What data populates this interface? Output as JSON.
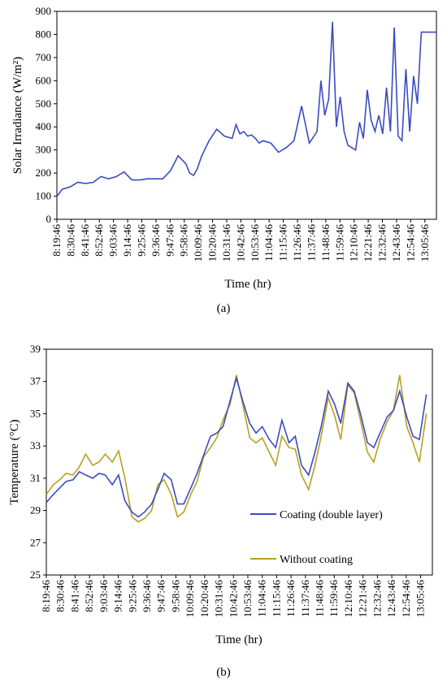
{
  "time_labels": [
    "8:19:46",
    "8:30:46",
    "8:41:46",
    "8:52:46",
    "9:03:46",
    "9:14:46",
    "9:25:46",
    "9:36:46",
    "9:47:46",
    "9:58:46",
    "10:09:46",
    "10:20:46",
    "10:31:46",
    "10:42:46",
    "10:53:46",
    "11:04:46",
    "11:15:46",
    "11:26:46",
    "11:37:46",
    "11:48:46",
    "11:59:46",
    "12:10:46",
    "12:21:46",
    "12:32:46",
    "12:43:46",
    "12:54:46",
    "13:05:46"
  ],
  "chart_data": [
    {
      "type": "line",
      "caption": "(a)",
      "xlabel": "Time (hr)",
      "ylabel": "Solar Irradiance (W/m²)",
      "ylim": [
        0,
        900
      ],
      "yticks": [
        0,
        100,
        200,
        300,
        400,
        500,
        600,
        700,
        800,
        900
      ],
      "x_hours": [
        8.33,
        8.4,
        8.5,
        8.6,
        8.7,
        8.8,
        8.9,
        9.0,
        9.1,
        9.2,
        9.3,
        9.4,
        9.5,
        9.6,
        9.7,
        9.8,
        9.9,
        10.0,
        10.05,
        10.1,
        10.15,
        10.2,
        10.3,
        10.4,
        10.5,
        10.6,
        10.65,
        10.7,
        10.75,
        10.8,
        10.85,
        10.9,
        10.95,
        11.0,
        11.1,
        11.2,
        11.3,
        11.4,
        11.5,
        11.6,
        11.7,
        11.75,
        11.8,
        11.85,
        11.9,
        11.95,
        12.0,
        12.05,
        12.1,
        12.15,
        12.2,
        12.25,
        12.3,
        12.35,
        12.4,
        12.45,
        12.5,
        12.55,
        12.6,
        12.65,
        12.7,
        12.75,
        12.8,
        12.85,
        12.9,
        12.95,
        13.0,
        13.05,
        13.1,
        13.15,
        13.2,
        13.25
      ],
      "series": [
        {
          "color": "#3b4cc0",
          "values": [
            100,
            130,
            140,
            160,
            155,
            160,
            185,
            175,
            185,
            205,
            170,
            170,
            175,
            175,
            175,
            210,
            275,
            240,
            200,
            190,
            220,
            270,
            340,
            390,
            360,
            350,
            410,
            370,
            380,
            360,
            365,
            350,
            330,
            340,
            330,
            290,
            310,
            340,
            490,
            330,
            380,
            600,
            450,
            520,
            855,
            400,
            530,
            380,
            320,
            310,
            300,
            420,
            350,
            560,
            430,
            380,
            450,
            370,
            570,
            380,
            830,
            360,
            340,
            650,
            380,
            620,
            500,
            810,
            810,
            810,
            810,
            810
          ]
        }
      ]
    },
    {
      "type": "line",
      "caption": "(b)",
      "xlabel": "Time (hr)",
      "ylabel": "Temperature (°C)",
      "ylim": [
        25,
        39
      ],
      "yticks": [
        25,
        27,
        29,
        31,
        33,
        35,
        37,
        39
      ],
      "x_hours": [
        8.33,
        8.42,
        8.5,
        8.58,
        8.67,
        8.75,
        8.83,
        8.92,
        9.0,
        9.08,
        9.17,
        9.25,
        9.33,
        9.42,
        9.5,
        9.58,
        9.67,
        9.75,
        9.83,
        9.92,
        10.0,
        10.08,
        10.17,
        10.25,
        10.33,
        10.42,
        10.5,
        10.58,
        10.67,
        10.75,
        10.83,
        10.92,
        11.0,
        11.08,
        11.17,
        11.25,
        11.33,
        11.42,
        11.5,
        11.58,
        11.67,
        11.75,
        11.83,
        11.92,
        12.0,
        12.08,
        12.17,
        12.25,
        12.33,
        12.42,
        12.5,
        12.58,
        12.67,
        12.75,
        12.83,
        12.92,
        13.0,
        13.08,
        13.17
      ],
      "series": [
        {
          "name": "Coating (double layer)",
          "color": "#3b4cc0",
          "values": [
            29.5,
            30.0,
            30.4,
            30.8,
            30.9,
            31.4,
            31.2,
            31.0,
            31.3,
            31.2,
            30.6,
            31.2,
            29.6,
            28.9,
            28.6,
            28.9,
            29.4,
            30.3,
            31.3,
            30.9,
            29.4,
            29.4,
            30.4,
            31.3,
            32.4,
            33.6,
            33.8,
            34.2,
            35.8,
            37.2,
            35.8,
            34.4,
            33.8,
            34.2,
            33.4,
            32.9,
            34.6,
            33.2,
            33.6,
            31.8,
            31.2,
            32.6,
            34.2,
            36.4,
            35.6,
            34.4,
            36.9,
            36.4,
            35.0,
            33.2,
            32.9,
            33.8,
            34.8,
            35.2,
            36.4,
            34.8,
            33.6,
            33.4,
            36.2
          ]
        },
        {
          "name": "Without coating",
          "color": "#b8a020",
          "values": [
            30.0,
            30.6,
            30.9,
            31.3,
            31.2,
            31.7,
            32.5,
            31.8,
            32.0,
            32.5,
            32.0,
            32.7,
            31.0,
            28.6,
            28.3,
            28.5,
            29.0,
            30.6,
            30.9,
            30.0,
            28.6,
            28.9,
            30.0,
            30.8,
            32.3,
            32.9,
            33.5,
            34.6,
            35.6,
            37.4,
            35.6,
            33.5,
            33.2,
            33.5,
            32.6,
            31.8,
            33.6,
            32.9,
            32.8,
            31.2,
            30.3,
            31.8,
            33.6,
            36.0,
            34.9,
            33.4,
            36.8,
            36.3,
            34.6,
            32.6,
            32.0,
            33.4,
            34.5,
            35.2,
            37.4,
            34.2,
            33.2,
            32.0,
            35.0
          ]
        }
      ]
    }
  ]
}
